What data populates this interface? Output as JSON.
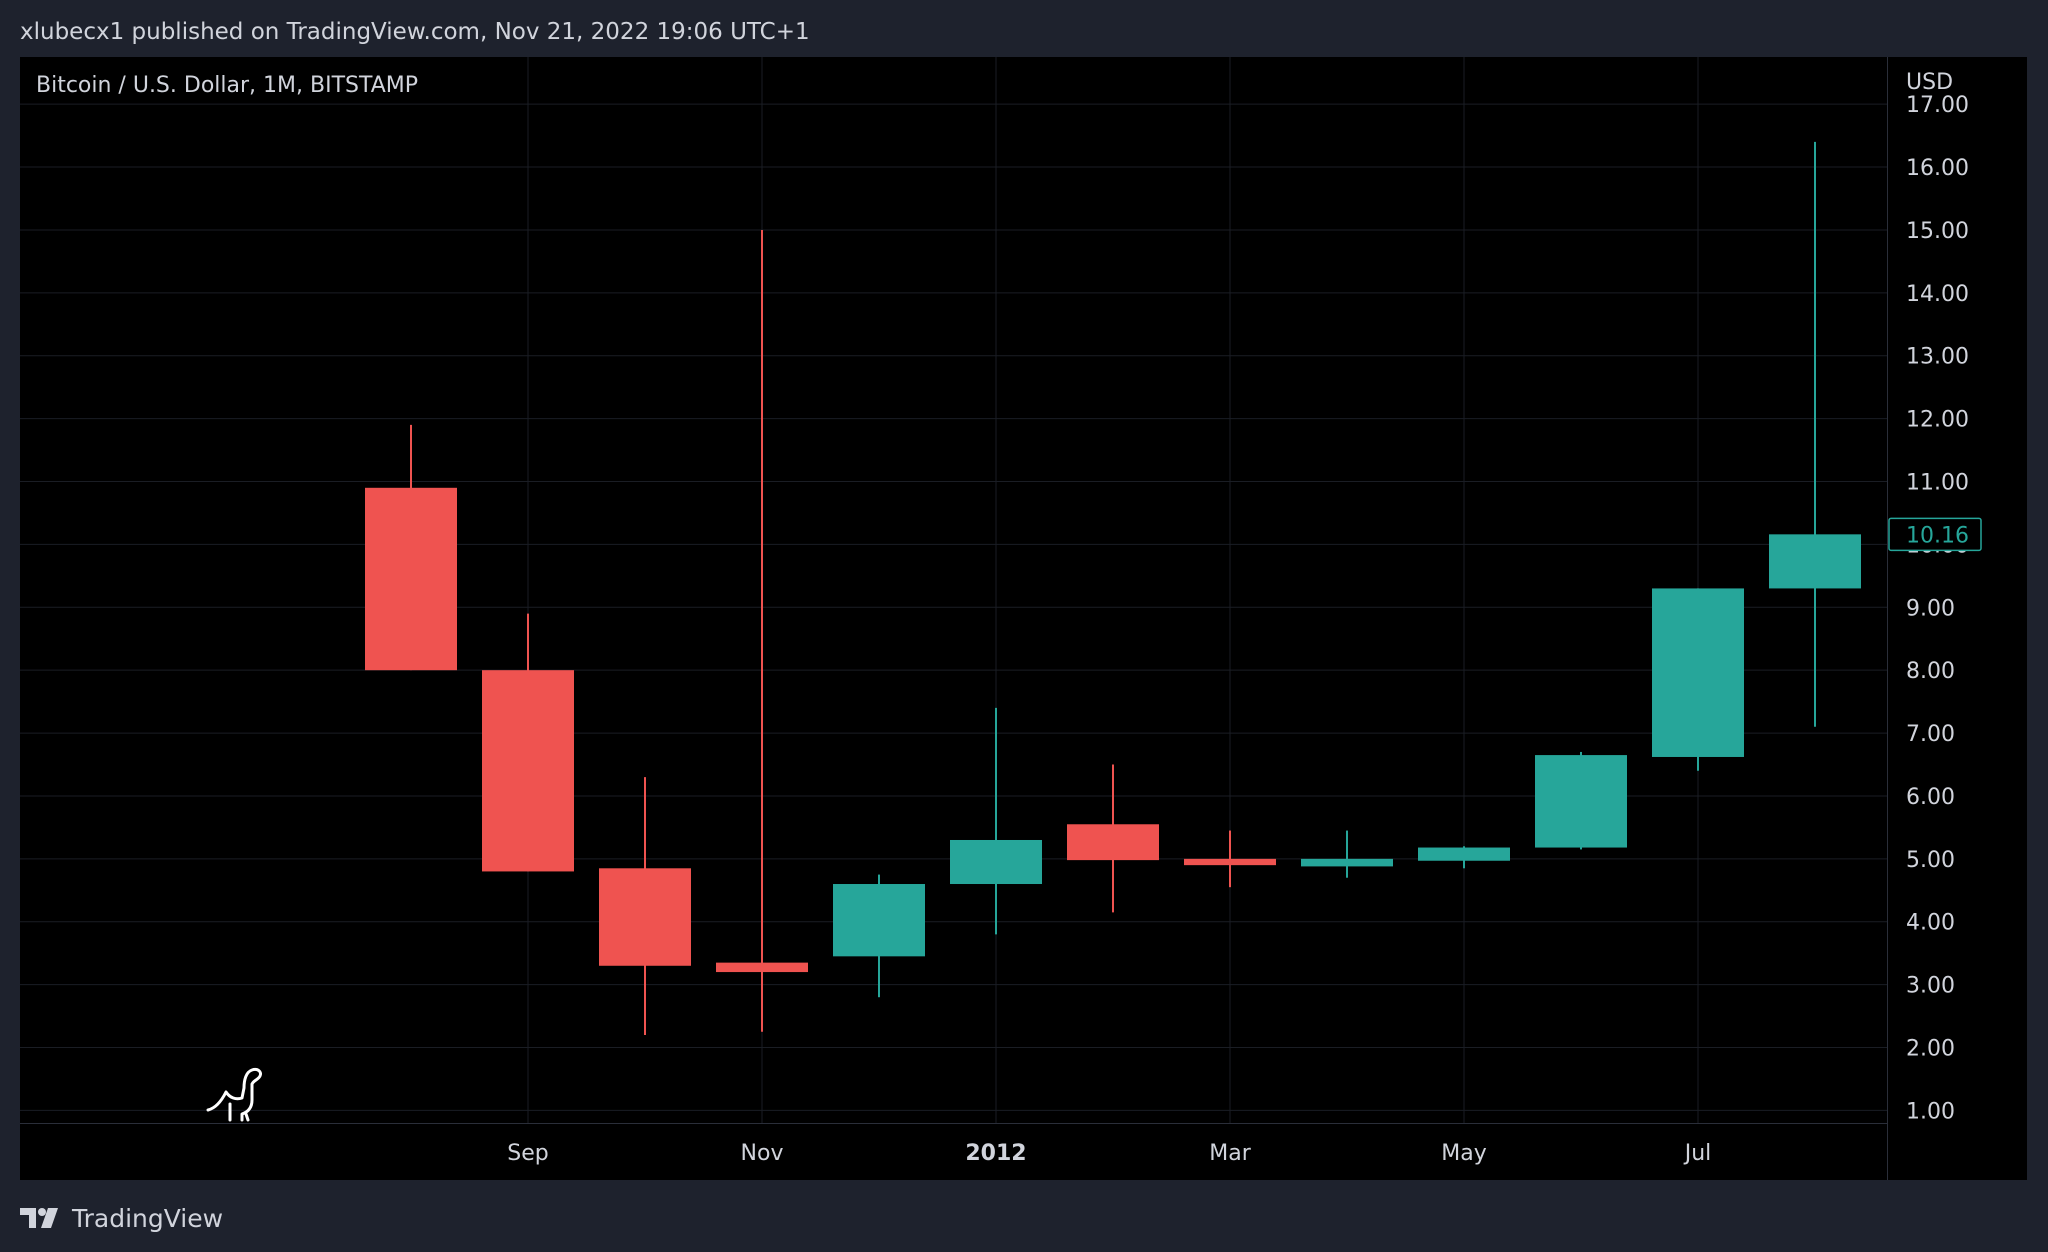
{
  "header": {
    "published_text": "xlubecx1 published on TradingView.com, Nov 21, 2022 19:06 UTC+1"
  },
  "footer": {
    "brand": "TradingView",
    "logo_icon": "tradingview-logo-icon"
  },
  "colors": {
    "up": "#26a69a",
    "down": "#ef5350",
    "background": "#000000",
    "frame": "#1e222d",
    "grid": "#1a1d24",
    "text": "#d1d4dc"
  },
  "chart_data": {
    "type": "candlestick",
    "title": "Bitcoin / U.S. Dollar, 1M, BITSTAMP",
    "currency_label": "USD",
    "last_price_label": "10.16",
    "ylim": [
      0.8,
      17.75
    ],
    "yticks": [
      "1.00",
      "2.00",
      "3.00",
      "4.00",
      "5.00",
      "6.00",
      "7.00",
      "8.00",
      "9.00",
      "10.00",
      "11.00",
      "12.00",
      "13.00",
      "14.00",
      "15.00",
      "16.00",
      "17.00"
    ],
    "xticks": [
      {
        "label": "Sep",
        "index": 1,
        "bold": false
      },
      {
        "label": "Nov",
        "index": 3,
        "bold": false
      },
      {
        "label": "2012",
        "index": 5,
        "bold": true
      },
      {
        "label": "Mar",
        "index": 7,
        "bold": false
      },
      {
        "label": "May",
        "index": 9,
        "bold": false
      },
      {
        "label": "Jul",
        "index": 11,
        "bold": false
      }
    ],
    "candles": [
      {
        "open": 10.9,
        "high": 11.9,
        "low": 8.0,
        "close": 8.0
      },
      {
        "open": 8.0,
        "high": 8.9,
        "low": 4.8,
        "close": 4.8
      },
      {
        "open": 4.85,
        "high": 6.3,
        "low": 2.2,
        "close": 3.3
      },
      {
        "open": 3.35,
        "high": 15.0,
        "low": 2.25,
        "close": 3.2
      },
      {
        "open": 3.45,
        "high": 4.75,
        "low": 2.8,
        "close": 4.6
      },
      {
        "open": 4.6,
        "high": 7.4,
        "low": 3.8,
        "close": 5.3
      },
      {
        "open": 5.55,
        "high": 6.5,
        "low": 4.15,
        "close": 4.98
      },
      {
        "open": 5.0,
        "high": 5.45,
        "low": 4.55,
        "close": 4.9
      },
      {
        "open": 4.88,
        "high": 5.45,
        "low": 4.7,
        "close": 5.0
      },
      {
        "open": 4.97,
        "high": 5.2,
        "low": 4.85,
        "close": 5.18
      },
      {
        "open": 5.18,
        "high": 6.7,
        "low": 5.15,
        "close": 6.65
      },
      {
        "open": 6.62,
        "high": 9.3,
        "low": 6.4,
        "close": 9.3
      },
      {
        "open": 9.3,
        "high": 16.4,
        "low": 7.1,
        "close": 10.16
      }
    ]
  }
}
